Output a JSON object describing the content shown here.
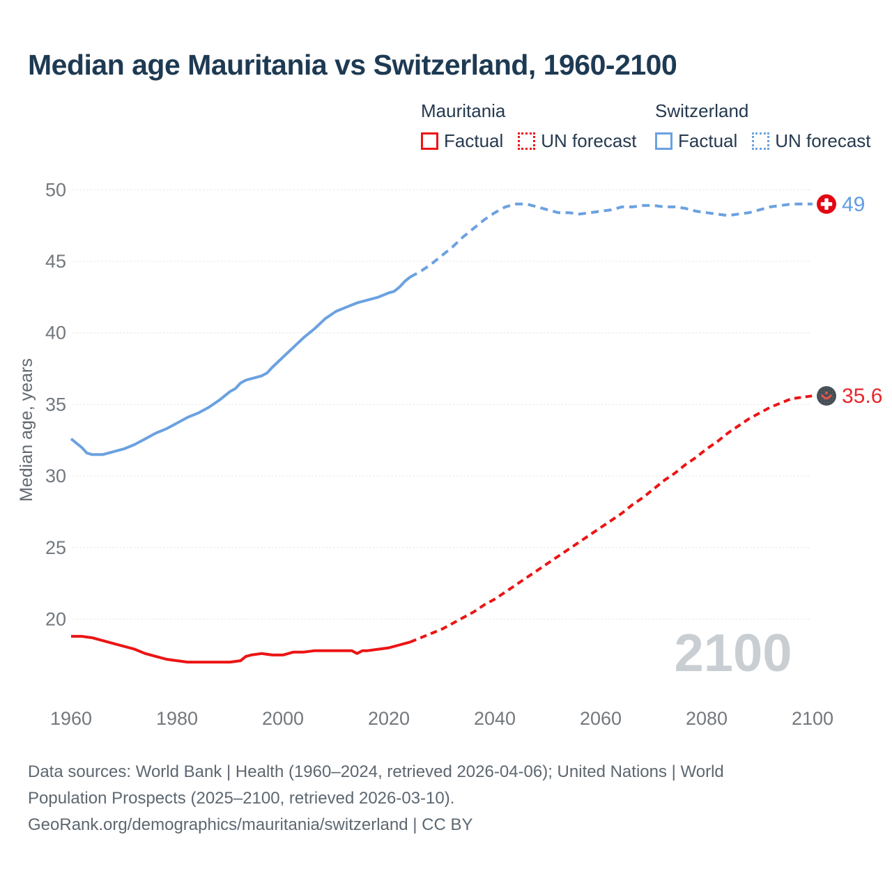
{
  "title": "Median age Mauritania vs Switzerland, 1960-2100",
  "watermark": "2100",
  "legend": {
    "groups": [
      {
        "name": "Mauritania",
        "factual_label": "Factual",
        "forecast_label": "UN forecast",
        "color": "#ec1414"
      },
      {
        "name": "Switzerland",
        "factual_label": "Factual",
        "forecast_label": "UN forecast",
        "color": "#6ba1e0"
      }
    ]
  },
  "footer": {
    "line1": "Data sources: World Bank | Health (1960–2024, retrieved 2026-04-06); United Nations | World",
    "line2": "Population Prospects (2025–2100, retrieved 2026-03-10).",
    "line3": "GeoRank.org/demographics/mauritania/switzerland | CC BY"
  },
  "chart_data": {
    "type": "line",
    "title": "Median age Mauritania vs Switzerland, 1960-2100",
    "xlabel": "",
    "ylabel": "Median age, years",
    "xlim": [
      1960,
      2100
    ],
    "ylim": [
      16.5,
      50.5
    ],
    "x_ticks": [
      1960,
      1980,
      2000,
      2020,
      2040,
      2060,
      2080,
      2100
    ],
    "y_ticks": [
      20,
      25,
      30,
      35,
      40,
      45,
      50
    ],
    "grid": true,
    "legend_position": "top",
    "series": [
      {
        "name": "Switzerland factual",
        "style": "solid",
        "color": "#6ba1e0",
        "points": [
          [
            1960,
            32.6
          ],
          [
            1961,
            32.3
          ],
          [
            1962,
            32.0
          ],
          [
            1963,
            31.6
          ],
          [
            1964,
            31.5
          ],
          [
            1965,
            31.5
          ],
          [
            1966,
            31.5
          ],
          [
            1967,
            31.6
          ],
          [
            1968,
            31.7
          ],
          [
            1970,
            31.9
          ],
          [
            1972,
            32.2
          ],
          [
            1974,
            32.6
          ],
          [
            1976,
            33.0
          ],
          [
            1978,
            33.3
          ],
          [
            1980,
            33.7
          ],
          [
            1982,
            34.1
          ],
          [
            1984,
            34.4
          ],
          [
            1986,
            34.8
          ],
          [
            1988,
            35.3
          ],
          [
            1990,
            35.9
          ],
          [
            1991,
            36.1
          ],
          [
            1992,
            36.5
          ],
          [
            1993,
            36.7
          ],
          [
            1994,
            36.8
          ],
          [
            1995,
            36.9
          ],
          [
            1996,
            37.0
          ],
          [
            1997,
            37.2
          ],
          [
            1998,
            37.6
          ],
          [
            2000,
            38.3
          ],
          [
            2002,
            39.0
          ],
          [
            2004,
            39.7
          ],
          [
            2006,
            40.3
          ],
          [
            2008,
            41.0
          ],
          [
            2010,
            41.5
          ],
          [
            2012,
            41.8
          ],
          [
            2014,
            42.1
          ],
          [
            2016,
            42.3
          ],
          [
            2018,
            42.5
          ],
          [
            2020,
            42.8
          ],
          [
            2021,
            42.9
          ],
          [
            2022,
            43.2
          ],
          [
            2023,
            43.6
          ],
          [
            2024,
            43.9
          ]
        ]
      },
      {
        "name": "Switzerland UN forecast",
        "style": "dashed",
        "color": "#6ba1e0",
        "points": [
          [
            2024,
            43.9
          ],
          [
            2026,
            44.3
          ],
          [
            2028,
            44.8
          ],
          [
            2030,
            45.4
          ],
          [
            2032,
            46.0
          ],
          [
            2034,
            46.7
          ],
          [
            2036,
            47.3
          ],
          [
            2038,
            47.9
          ],
          [
            2040,
            48.4
          ],
          [
            2042,
            48.8
          ],
          [
            2044,
            49.0
          ],
          [
            2046,
            49.0
          ],
          [
            2048,
            48.8
          ],
          [
            2050,
            48.6
          ],
          [
            2052,
            48.4
          ],
          [
            2054,
            48.4
          ],
          [
            2056,
            48.3
          ],
          [
            2058,
            48.4
          ],
          [
            2060,
            48.5
          ],
          [
            2062,
            48.6
          ],
          [
            2064,
            48.8
          ],
          [
            2066,
            48.8
          ],
          [
            2068,
            48.9
          ],
          [
            2070,
            48.9
          ],
          [
            2072,
            48.8
          ],
          [
            2074,
            48.8
          ],
          [
            2076,
            48.7
          ],
          [
            2078,
            48.5
          ],
          [
            2080,
            48.4
          ],
          [
            2082,
            48.3
          ],
          [
            2084,
            48.2
          ],
          [
            2086,
            48.3
          ],
          [
            2088,
            48.4
          ],
          [
            2090,
            48.6
          ],
          [
            2092,
            48.8
          ],
          [
            2094,
            48.9
          ],
          [
            2096,
            49.0
          ],
          [
            2098,
            49.0
          ],
          [
            2100,
            49.0
          ]
        ]
      },
      {
        "name": "Mauritania factual",
        "style": "solid",
        "color": "#ec1414",
        "points": [
          [
            1960,
            18.8
          ],
          [
            1962,
            18.8
          ],
          [
            1964,
            18.7
          ],
          [
            1966,
            18.5
          ],
          [
            1968,
            18.3
          ],
          [
            1970,
            18.1
          ],
          [
            1972,
            17.9
          ],
          [
            1974,
            17.6
          ],
          [
            1976,
            17.4
          ],
          [
            1978,
            17.2
          ],
          [
            1980,
            17.1
          ],
          [
            1982,
            17.0
          ],
          [
            1984,
            17.0
          ],
          [
            1986,
            17.0
          ],
          [
            1988,
            17.0
          ],
          [
            1990,
            17.0
          ],
          [
            1992,
            17.1
          ],
          [
            1993,
            17.4
          ],
          [
            1994,
            17.5
          ],
          [
            1996,
            17.6
          ],
          [
            1998,
            17.5
          ],
          [
            2000,
            17.5
          ],
          [
            2002,
            17.7
          ],
          [
            2004,
            17.7
          ],
          [
            2006,
            17.8
          ],
          [
            2008,
            17.8
          ],
          [
            2010,
            17.8
          ],
          [
            2012,
            17.8
          ],
          [
            2013,
            17.8
          ],
          [
            2014,
            17.6
          ],
          [
            2015,
            17.8
          ],
          [
            2016,
            17.8
          ],
          [
            2018,
            17.9
          ],
          [
            2020,
            18.0
          ],
          [
            2022,
            18.2
          ],
          [
            2023,
            18.3
          ],
          [
            2024,
            18.4
          ]
        ]
      },
      {
        "name": "Mauritania UN forecast",
        "style": "dashed",
        "color": "#ec1414",
        "points": [
          [
            2024,
            18.4
          ],
          [
            2026,
            18.7
          ],
          [
            2028,
            19.0
          ],
          [
            2030,
            19.3
          ],
          [
            2032,
            19.7
          ],
          [
            2034,
            20.1
          ],
          [
            2036,
            20.5
          ],
          [
            2038,
            21.0
          ],
          [
            2040,
            21.4
          ],
          [
            2042,
            21.9
          ],
          [
            2044,
            22.4
          ],
          [
            2046,
            22.9
          ],
          [
            2048,
            23.4
          ],
          [
            2050,
            23.9
          ],
          [
            2052,
            24.4
          ],
          [
            2054,
            24.9
          ],
          [
            2056,
            25.4
          ],
          [
            2058,
            25.9
          ],
          [
            2060,
            26.4
          ],
          [
            2062,
            26.9
          ],
          [
            2064,
            27.4
          ],
          [
            2066,
            28.0
          ],
          [
            2068,
            28.5
          ],
          [
            2070,
            29.1
          ],
          [
            2072,
            29.7
          ],
          [
            2074,
            30.2
          ],
          [
            2076,
            30.8
          ],
          [
            2078,
            31.3
          ],
          [
            2080,
            31.9
          ],
          [
            2082,
            32.4
          ],
          [
            2084,
            33.0
          ],
          [
            2086,
            33.5
          ],
          [
            2088,
            34.0
          ],
          [
            2090,
            34.4
          ],
          [
            2092,
            34.8
          ],
          [
            2094,
            35.1
          ],
          [
            2096,
            35.4
          ],
          [
            2098,
            35.5
          ],
          [
            2100,
            35.6
          ]
        ]
      }
    ],
    "end_markers": [
      {
        "country": "Switzerland",
        "series": "Switzerland UN forecast",
        "label": "49",
        "label_color": "#5f9ee2",
        "flag": "switzerland"
      },
      {
        "country": "Mauritania",
        "series": "Mauritania UN forecast",
        "label": "35.6",
        "label_color": "#e8252b",
        "flag": "mauritania"
      }
    ]
  }
}
